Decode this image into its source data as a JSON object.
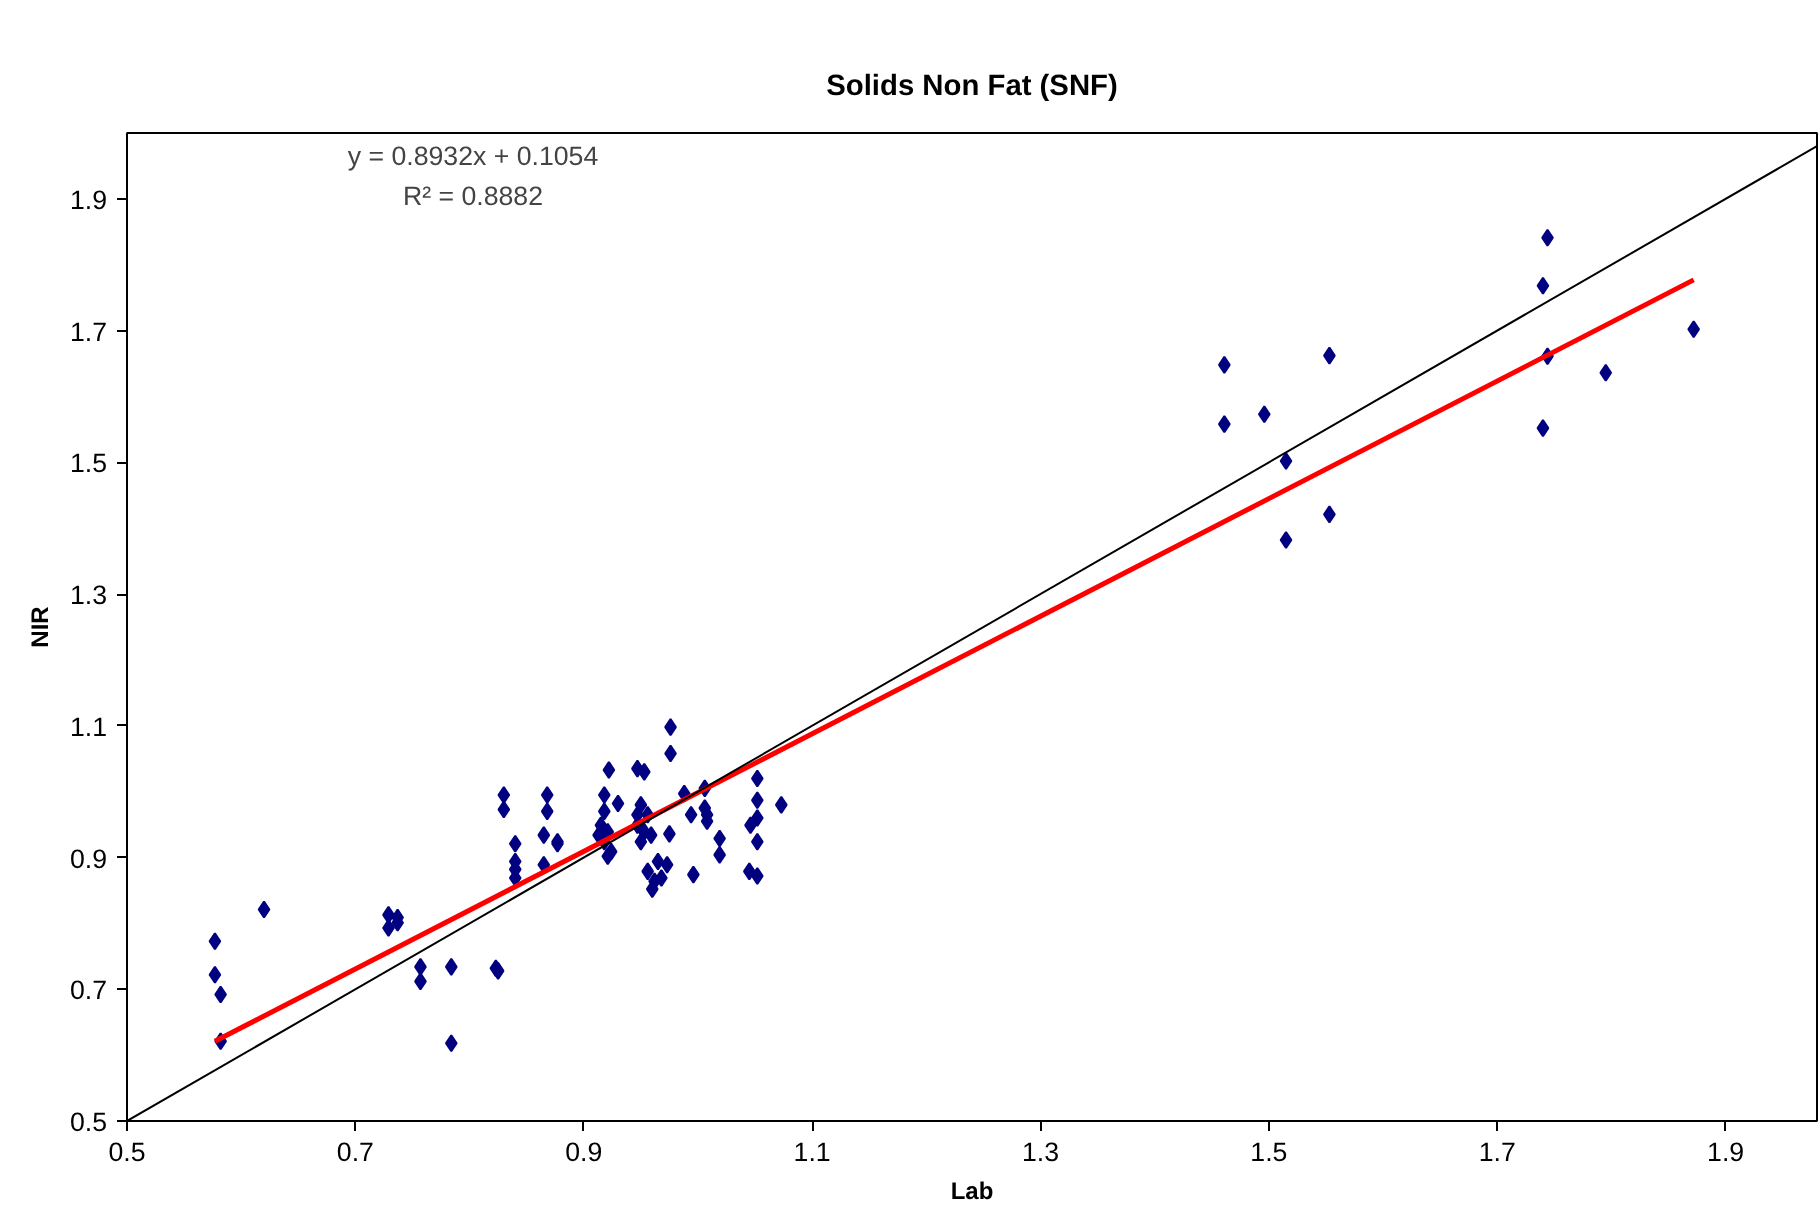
{
  "chart_data": {
    "type": "scatter",
    "title": "Solids Non Fat (SNF)",
    "xlabel": "Lab",
    "ylabel": "NIR",
    "annotations": [
      "y = 0.8932x + 0.1054",
      "R² = 0.8882"
    ],
    "xlim": [
      0.5,
      1.98
    ],
    "ylim": [
      0.5,
      2.0
    ],
    "xticks": [
      0.5,
      0.7,
      0.9,
      1.1,
      1.3,
      1.5,
      1.7,
      1.9
    ],
    "yticks": [
      0.5,
      0.7,
      0.9,
      1.1,
      1.3,
      1.5,
      1.7,
      1.9
    ],
    "grid": false,
    "marker": "diamond",
    "series": [
      {
        "color": "#000080",
        "x": [
          0.577,
          0.577,
          0.582,
          0.582,
          0.62,
          0.729,
          0.737,
          0.729,
          0.737,
          0.757,
          0.757,
          0.784,
          0.784,
          0.823,
          0.825,
          0.83,
          0.83,
          0.84,
          0.84,
          0.84,
          0.84,
          0.868,
          0.868,
          0.865,
          0.877,
          0.877,
          0.865,
          0.922,
          0.918,
          0.93,
          0.918,
          0.915,
          0.921,
          0.913,
          0.918,
          0.924,
          0.921,
          0.947,
          0.953,
          0.95,
          0.947,
          0.956,
          0.947,
          0.953,
          0.959,
          0.95,
          0.976,
          0.976,
          0.988,
          0.994,
          0.975,
          0.956,
          0.965,
          0.973,
          0.962,
          0.968,
          0.96,
          0.996,
          1.006,
          1.006,
          1.008,
          1.008,
          1.019,
          1.019,
          1.052,
          1.052,
          1.052,
          1.046,
          1.052,
          1.073,
          1.045,
          1.052,
          1.461,
          1.461,
          1.496,
          1.515,
          1.515,
          1.553,
          1.553,
          1.744,
          1.74,
          1.744,
          1.74,
          1.795,
          1.872
        ],
        "values": [
          0.773,
          0.722,
          0.692,
          0.621,
          0.821,
          0.813,
          0.809,
          0.793,
          0.801,
          0.734,
          0.712,
          0.734,
          0.618,
          0.732,
          0.728,
          0.995,
          0.973,
          0.921,
          0.894,
          0.882,
          0.869,
          0.995,
          0.97,
          0.934,
          0.924,
          0.921,
          0.889,
          1.033,
          0.995,
          0.982,
          0.97,
          0.949,
          0.939,
          0.934,
          0.924,
          0.909,
          0.902,
          1.035,
          1.03,
          0.98,
          0.965,
          0.965,
          0.949,
          0.939,
          0.934,
          0.924,
          1.098,
          1.058,
          0.997,
          0.965,
          0.936,
          0.879,
          0.894,
          0.889,
          0.864,
          0.869,
          0.852,
          0.874,
          1.005,
          0.975,
          0.965,
          0.955,
          0.929,
          0.904,
          1.02,
          0.987,
          0.96,
          0.949,
          0.924,
          0.98,
          0.879,
          0.872,
          1.648,
          1.558,
          1.573,
          1.502,
          1.382,
          1.662,
          1.421,
          1.841,
          1.768,
          1.661,
          1.552,
          1.636,
          1.702
        ]
      },
      {
        "type": "line",
        "color": "#ff0000",
        "marker": "none",
        "x": [
          0.577,
          1.872
        ],
        "values": [
          0.621,
          1.777
        ]
      },
      {
        "type": "line",
        "color": "#000000",
        "marker": "none",
        "x": [
          0.5,
          1.98
        ],
        "values": [
          0.5,
          1.98
        ]
      }
    ]
  }
}
